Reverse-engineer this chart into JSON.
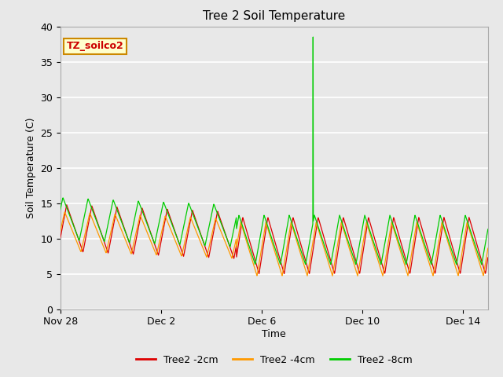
{
  "title": "Tree 2 Soil Temperature",
  "xlabel": "Time",
  "ylabel": "Soil Temperature (C)",
  "ylim": [
    0,
    40
  ],
  "yticks": [
    0,
    5,
    10,
    15,
    20,
    25,
    30,
    35,
    40
  ],
  "xtick_labels": [
    "Nov 28",
    "Dec 2",
    "Dec 6",
    "Dec 10",
    "Dec 14"
  ],
  "xtick_positions": [
    0,
    4,
    8,
    12,
    16
  ],
  "legend_labels": [
    "Tree2 -2cm",
    "Tree2 -4cm",
    "Tree2 -8cm"
  ],
  "legend_colors": [
    "#dd0000",
    "#ff9900",
    "#00cc00"
  ],
  "inset_label": "TZ_soilco2",
  "inset_bg": "#ffffcc",
  "inset_border": "#cc8800",
  "inset_text_color": "#cc0000",
  "plot_bg": "#e8e8e8",
  "fig_bg": "#e8e8e8",
  "grid_color": "#ffffff",
  "spike_day": 10.05,
  "spike_value": 38.5,
  "xlim": [
    0,
    17
  ],
  "period": 1.0
}
